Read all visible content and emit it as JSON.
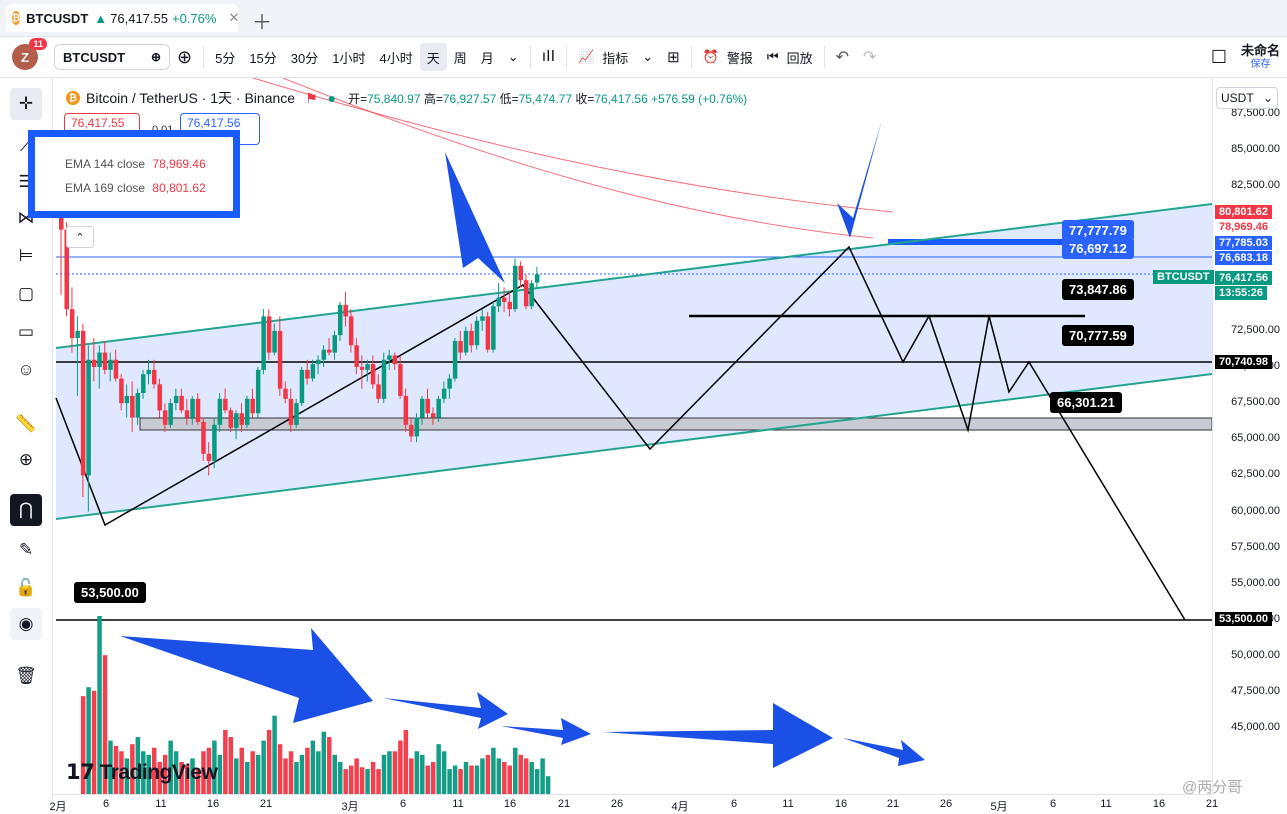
{
  "tab": {
    "symbol": "BTCUSDT",
    "price": "76,417.55",
    "change": "+0.76%",
    "coin_icon": "bitcoin-icon"
  },
  "toolbar": {
    "avatar_letter": "Z",
    "badge": "11",
    "symbol": "BTCUSDT",
    "intervals": [
      "5分",
      "15分",
      "30分",
      "1小时",
      "4小时",
      "天",
      "周",
      "月"
    ],
    "active_interval": "天",
    "indicators": "指标",
    "alert": "警报",
    "replay": "回放",
    "layout_name": "未命名",
    "save": "保存"
  },
  "legend": {
    "title": "Bitcoin / TetherUS · 1天 · Binance",
    "open_label": "开=",
    "open": "75,840.97",
    "high_label": "高=",
    "high": "76,927.57",
    "low_label": "低=",
    "low": "75,474.77",
    "close_label": "收=",
    "close": "76,417.56",
    "change": "+576.59 (+0.76%)",
    "sell_price": "76,417.55",
    "buy_price": "76,417.56",
    "spread": "0.01",
    "ema1": {
      "label": "EMA 144 close",
      "value": "78,969.46"
    },
    "ema2": {
      "label": "EMA 169 close",
      "value": "80,801.62"
    }
  },
  "currency_select": "USDT",
  "price_axis": {
    "labels": [
      "87,500.00",
      "85,000.00",
      "82,500.00",
      "72,500.00",
      "70,000.00",
      "67,500.00",
      "65,000.00",
      "62,500.00",
      "60,000.00",
      "57,500.00",
      "55,000.00",
      "52,500.00",
      "50,000.00",
      "47,500.00",
      "45,000.00"
    ],
    "tags": [
      {
        "text": "80,801.62",
        "color": "#f23645"
      },
      {
        "text": "78,969.46",
        "color": "#ffffff"
      },
      {
        "text": "77,785.03",
        "color": "#2962ff"
      },
      {
        "text": "76,683.18",
        "color": "#2962ff"
      },
      {
        "text": "76,417.56",
        "color": "#089981"
      },
      {
        "text": "13:55:26",
        "color": "#089981"
      },
      {
        "text": "70,740.98",
        "color": "#000000"
      },
      {
        "text": "53,500.00",
        "color": "#000000"
      }
    ],
    "symbol_tag": "BTCUSDT"
  },
  "callouts": [
    "77,777.79",
    "76,697.12",
    "73,847.86",
    "70,777.59",
    "66,301.21",
    "53,500.00"
  ],
  "time_axis": [
    "2月",
    "6",
    "11",
    "16",
    "21",
    "3月",
    "6",
    "11",
    "16",
    "21",
    "26",
    "4月",
    "6",
    "11",
    "16",
    "21",
    "26",
    "5月",
    "6",
    "11",
    "16",
    "21"
  ],
  "branding": {
    "logo": "TradingView",
    "watermark": "@两分哥"
  },
  "chart_data": {
    "type": "candlestick",
    "y_range": [
      43000,
      88500
    ],
    "series": [
      {
        "name": "EMA 144 close",
        "last": 78969.46
      },
      {
        "name": "EMA 169 close",
        "last": 80801.62
      }
    ],
    "candles": [
      [
        80500,
        81000,
        75000,
        79500
      ],
      [
        79500,
        80000,
        73500,
        74000
      ],
      [
        74000,
        75500,
        71000,
        72000
      ],
      [
        72000,
        73500,
        68000,
        72500
      ],
      [
        72500,
        73000,
        61000,
        62500
      ],
      [
        62500,
        71500,
        60000,
        70500
      ],
      [
        70500,
        72000,
        69000,
        70000
      ],
      [
        70000,
        71500,
        68500,
        71000
      ],
      [
        71000,
        71800,
        69500,
        69800
      ],
      [
        69800,
        71000,
        69000,
        70500
      ],
      [
        70500,
        71200,
        69000,
        69200
      ],
      [
        69200,
        69500,
        67000,
        67500
      ],
      [
        67500,
        68800,
        66500,
        68000
      ],
      [
        68000,
        69000,
        65500,
        66500
      ],
      [
        66500,
        68500,
        66000,
        68200
      ],
      [
        68200,
        69800,
        67800,
        69500
      ],
      [
        69500,
        70500,
        68800,
        69800
      ],
      [
        69800,
        70500,
        68500,
        68800
      ],
      [
        68800,
        69200,
        66500,
        67000
      ],
      [
        67000,
        67500,
        65500,
        66000
      ],
      [
        66000,
        67800,
        65800,
        67500
      ],
      [
        67500,
        68500,
        67000,
        68000
      ],
      [
        68000,
        68500,
        66800,
        67000
      ],
      [
        67000,
        67800,
        66000,
        66500
      ],
      [
        66500,
        68000,
        66000,
        67800
      ],
      [
        67800,
        68200,
        66000,
        66200
      ],
      [
        66200,
        66500,
        63500,
        64000
      ],
      [
        64000,
        64800,
        62500,
        63500
      ],
      [
        63500,
        66500,
        63000,
        66000
      ],
      [
        66000,
        68200,
        65500,
        67800
      ],
      [
        67800,
        68500,
        66800,
        67000
      ],
      [
        67000,
        67200,
        65500,
        65800
      ],
      [
        65800,
        67000,
        65000,
        66800
      ],
      [
        66800,
        67500,
        65500,
        66000
      ],
      [
        66000,
        68000,
        65800,
        67800
      ],
      [
        67800,
        68500,
        66500,
        66800
      ],
      [
        66800,
        70000,
        66500,
        69800
      ],
      [
        69800,
        74000,
        69500,
        73500
      ],
      [
        73500,
        74000,
        70500,
        71000
      ],
      [
        71000,
        73000,
        70800,
        72500
      ],
      [
        72500,
        73500,
        68000,
        68500
      ],
      [
        68500,
        69000,
        67500,
        67800
      ],
      [
        67800,
        68500,
        65500,
        66000
      ],
      [
        66000,
        67800,
        65800,
        67500
      ],
      [
        67500,
        70000,
        67300,
        69800
      ],
      [
        69800,
        70500,
        68800,
        69200
      ],
      [
        69200,
        70500,
        69000,
        70200
      ],
      [
        70200,
        70800,
        69500,
        70500
      ],
      [
        70500,
        71500,
        70000,
        71200
      ],
      [
        71200,
        72000,
        70800,
        71000
      ],
      [
        71000,
        72500,
        70500,
        72200
      ],
      [
        72200,
        74500,
        71800,
        74300
      ],
      [
        74300,
        75200,
        72800,
        73500
      ],
      [
        73500,
        74000,
        71000,
        71500
      ],
      [
        71500,
        72000,
        69500,
        70000
      ],
      [
        70000,
        70800,
        68500,
        69800
      ],
      [
        69800,
        70500,
        69000,
        70200
      ],
      [
        70200,
        70800,
        68500,
        68800
      ],
      [
        68800,
        69500,
        67500,
        67800
      ],
      [
        67800,
        71000,
        67500,
        70500
      ],
      [
        70500,
        71200,
        69800,
        70800
      ],
      [
        70800,
        71000,
        69800,
        70200
      ],
      [
        70200,
        70800,
        67800,
        68000
      ],
      [
        68000,
        68500,
        65500,
        66000
      ],
      [
        66000,
        66500,
        64800,
        65200
      ],
      [
        65200,
        66800,
        64800,
        66500
      ],
      [
        66500,
        68000,
        66000,
        67800
      ],
      [
        67800,
        68500,
        66500,
        66800
      ],
      [
        66800,
        67200,
        66000,
        66500
      ],
      [
        66500,
        68000,
        66200,
        67800
      ],
      [
        67800,
        69000,
        67500,
        68500
      ],
      [
        68500,
        69500,
        67800,
        69200
      ],
      [
        69200,
        72000,
        69000,
        71800
      ],
      [
        71800,
        72500,
        70500,
        71000
      ],
      [
        71000,
        72800,
        70800,
        72500
      ],
      [
        72500,
        73000,
        71000,
        71500
      ],
      [
        71500,
        73500,
        71200,
        73200
      ],
      [
        73200,
        74000,
        72500,
        73500
      ],
      [
        73500,
        73800,
        71000,
        71200
      ],
      [
        71200,
        74500,
        71000,
        74200
      ],
      [
        74200,
        75800,
        73800,
        74800
      ],
      [
        74800,
        75500,
        73800,
        74500
      ],
      [
        74500,
        75200,
        73500,
        74000
      ],
      [
        74000,
        77500,
        73800,
        77000
      ],
      [
        77000,
        77300,
        75500,
        76000
      ],
      [
        76000,
        76400,
        74000,
        74200
      ],
      [
        74200,
        76000,
        74000,
        75800
      ],
      [
        75840,
        76927,
        75474,
        76417
      ]
    ],
    "volume_start": 4,
    "volumes": [
      55,
      60,
      58,
      100,
      78,
      30,
      27,
      24,
      20,
      28,
      32,
      24,
      22,
      26,
      18,
      22,
      30,
      24,
      18,
      16,
      20,
      14,
      24,
      26,
      30,
      22,
      36,
      32,
      20,
      26,
      18,
      24,
      22,
      30,
      36,
      44,
      28,
      20,
      24,
      18,
      22,
      26,
      30,
      24,
      35,
      32,
      22,
      18,
      14,
      16,
      20,
      15,
      14,
      18,
      14,
      22,
      24,
      24,
      30,
      36,
      20,
      24,
      22,
      16,
      18,
      28,
      24,
      14,
      16,
      14,
      18,
      16,
      16,
      20,
      22,
      26,
      20,
      18,
      16,
      26,
      22,
      20,
      18,
      14,
      20,
      10
    ]
  }
}
